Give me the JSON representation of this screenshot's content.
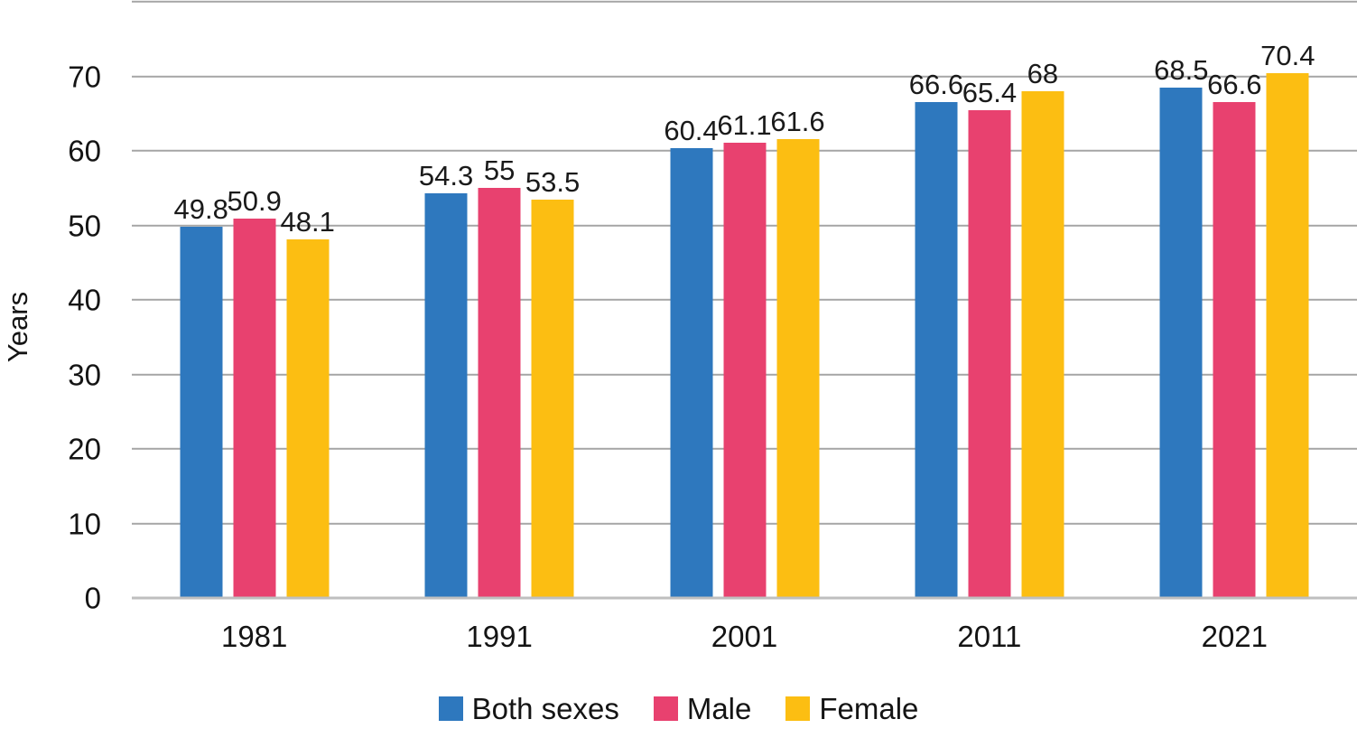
{
  "chart_data": {
    "type": "bar",
    "title": "",
    "categories": [
      "1981",
      "1991",
      "2001",
      "2011",
      "2021"
    ],
    "series": [
      {
        "name": "Both sexes",
        "color": "#2E78BE",
        "values": [
          49.8,
          54.3,
          60.4,
          66.6,
          68.5
        ]
      },
      {
        "name": "Male",
        "color": "#E8416F",
        "values": [
          50.9,
          55,
          61.1,
          65.4,
          66.6
        ]
      },
      {
        "name": "Female",
        "color": "#FCBE12",
        "values": [
          48.1,
          53.5,
          61.6,
          68,
          70.4
        ]
      }
    ],
    "xlabel": "",
    "ylabel": "Years",
    "ylim": [
      0,
      80
    ],
    "yticks": [
      0,
      10,
      20,
      30,
      40,
      50,
      60,
      70
    ],
    "grid": true,
    "data_labels": true,
    "legend_position": "bottom"
  },
  "colors": {
    "gridline": "#A6A6A6",
    "axis_line": "#BFBFBF",
    "text": "#141414"
  }
}
